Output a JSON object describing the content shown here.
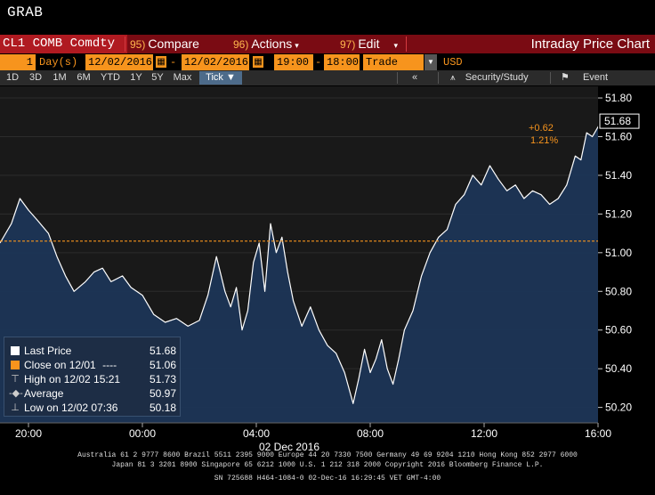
{
  "title": "GRAB",
  "toolbar": {
    "ticker": "CL1 COMB Comdty",
    "compare_num": "95)",
    "compare_label": "Compare",
    "actions_num": "96)",
    "actions_label": "Actions",
    "edit_num": "97)",
    "edit_label": "Edit",
    "chart_title": "Intraday Price Chart"
  },
  "controls": {
    "period_count": "1",
    "period_unit": "Day(s)",
    "start_date": "12/02/2016",
    "end_date": "12/02/2016",
    "start_time": "19:00",
    "end_time": "18:00",
    "market": "Trade",
    "currency": "USD"
  },
  "ranges": [
    "1D",
    "3D",
    "1M",
    "6M",
    "YTD",
    "1Y",
    "5Y",
    "Max"
  ],
  "tick_label": "Tick",
  "tools": {
    "collapse": "«",
    "security_study": "Security/Study",
    "event": "Event"
  },
  "colors": {
    "accent_orange": "#f7941d",
    "toolbar_red": "#7a0b13",
    "area_fill": "#1c3556",
    "price_line": "#ffffff",
    "prev_close_line": "#f7941d"
  },
  "chart_data": {
    "type": "area",
    "x_ticks": [
      "20:00",
      "00:00",
      "04:00",
      "08:00",
      "12:00",
      "16:00"
    ],
    "date_label": "02 Dec 2016",
    "y_ticks": [
      "51.80",
      "51.60",
      "51.40",
      "51.20",
      "51.00",
      "50.80",
      "50.60",
      "50.40",
      "50.20"
    ],
    "ylim": [
      50.12,
      51.86
    ],
    "xlim_hours": [
      19,
      42
    ],
    "last_price": 51.68,
    "last_price_label": "51.68",
    "prev_close": 51.06,
    "change_abs": "+0.62",
    "change_pct": "1.21%",
    "series": [
      {
        "name": "Last Price",
        "x": [
          19.0,
          19.4,
          19.7,
          20.0,
          20.3,
          20.7,
          21.0,
          21.3,
          21.6,
          22.0,
          22.3,
          22.6,
          22.9,
          23.3,
          23.6,
          24.0,
          24.4,
          24.8,
          25.2,
          25.6,
          26.0,
          26.3,
          26.6,
          26.9,
          27.1,
          27.3,
          27.5,
          27.7,
          27.9,
          28.1,
          28.3,
          28.5,
          28.7,
          28.9,
          29.1,
          29.3,
          29.6,
          29.9,
          30.2,
          30.5,
          30.8,
          31.1,
          31.4,
          31.6,
          31.8,
          32.0,
          32.2,
          32.4,
          32.6,
          32.8,
          33.0,
          33.2,
          33.5,
          33.8,
          34.1,
          34.4,
          34.7,
          35.0,
          35.3,
          35.6,
          35.9,
          36.2,
          36.5,
          36.8,
          37.1,
          37.4,
          37.7,
          38.0,
          38.3,
          38.6,
          38.9,
          39.2,
          39.4,
          39.6,
          39.8,
          40.0,
          40.2,
          40.4,
          40.6,
          40.8,
          41.0,
          41.2
        ],
        "y": [
          51.05,
          51.15,
          51.28,
          51.22,
          51.17,
          51.1,
          50.98,
          50.88,
          50.8,
          50.85,
          50.9,
          50.92,
          50.85,
          50.88,
          50.82,
          50.78,
          50.68,
          50.64,
          50.66,
          50.62,
          50.65,
          50.78,
          50.98,
          50.8,
          50.72,
          50.82,
          50.6,
          50.7,
          50.95,
          51.05,
          50.8,
          51.15,
          51.0,
          51.08,
          50.9,
          50.75,
          50.62,
          50.72,
          50.6,
          50.52,
          50.48,
          50.38,
          50.22,
          50.35,
          50.5,
          50.38,
          50.45,
          50.55,
          50.4,
          50.32,
          50.45,
          50.6,
          50.7,
          50.88,
          51.0,
          51.08,
          51.12,
          51.25,
          51.3,
          51.4,
          51.35,
          51.45,
          51.38,
          51.32,
          51.35,
          51.28,
          51.32,
          51.3,
          51.25,
          51.28,
          51.35,
          51.5,
          51.48,
          51.62,
          51.6,
          51.65,
          51.7,
          51.62,
          51.68,
          51.64,
          51.66,
          51.68
        ]
      }
    ]
  },
  "legend": {
    "last_price_label": "Last Price",
    "last_price_value": "51.68",
    "close_label": "Close on 12/01",
    "close_dashes": "----",
    "close_value": "51.06",
    "high_label": "High on 12/02 15:21",
    "high_value": "51.73",
    "average_label": "Average",
    "average_value": "50.97",
    "low_label": "Low on 12/02 07:36",
    "low_value": "50.18"
  },
  "footer": {
    "line1": "Australia 61 2 9777 8600 Brazil 5511 2395 9000 Europe 44 20 7330 7500 Germany 49 69 9204 1210 Hong Kong 852 2977 6000",
    "line2": "Japan 81 3 3201 8900        Singapore 65 6212 1000        U.S. 1 212 318 2000        Copyright 2016 Bloomberg Finance L.P.",
    "line3": "SN 725688 H464-1084-0 02-Dec-16 16:29:45 VET  GMT-4:00"
  }
}
